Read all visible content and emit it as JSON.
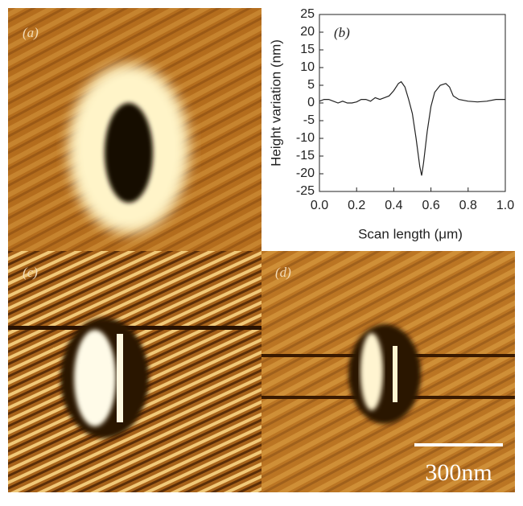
{
  "panels": {
    "a": "(a)",
    "c": "(c)",
    "d": "(d)",
    "scale_bar": "300nm"
  },
  "chart_data": {
    "type": "line",
    "panel_label": "(b)",
    "xlabel": "Scan length (μm)",
    "ylabel": "Height variation (nm)",
    "x": [
      0,
      0.025,
      0.05,
      0.075,
      0.1,
      0.125,
      0.15,
      0.175,
      0.2,
      0.225,
      0.25,
      0.275,
      0.3,
      0.325,
      0.35,
      0.375,
      0.4,
      0.425,
      0.44,
      0.46,
      0.48,
      0.5,
      0.52,
      0.54,
      0.55,
      0.56,
      0.58,
      0.6,
      0.62,
      0.65,
      0.68,
      0.7,
      0.72,
      0.75,
      0.8,
      0.85,
      0.9,
      0.95,
      1.0
    ],
    "series": [
      {
        "color": "#222222",
        "values": [
          0.5,
          1,
          1,
          0.5,
          0,
          0.5,
          0,
          0,
          0.3,
          1,
          1,
          0.5,
          1.5,
          1,
          1.5,
          2,
          3.5,
          5.5,
          6,
          4.5,
          1,
          -3,
          -10,
          -18,
          -20.5,
          -17,
          -8,
          -1,
          3,
          5,
          5.5,
          4.5,
          2,
          1,
          0.5,
          0.3,
          0.5,
          1,
          1
        ]
      }
    ],
    "xlim": [
      0,
      1
    ],
    "xticks": [
      {
        "value": 0,
        "label": "0.0"
      },
      0.2,
      0.4,
      0.6,
      0.8,
      {
        "value": 1,
        "label": "1.0"
      }
    ],
    "ylim": [
      -25,
      25
    ],
    "yticks": [
      -25,
      -20,
      -15,
      -10,
      -5,
      0,
      5,
      10,
      15,
      20,
      25
    ]
  }
}
